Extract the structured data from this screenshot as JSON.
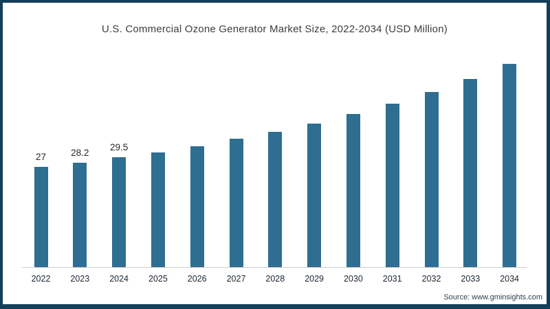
{
  "title": "U.S. Commercial Ozone Generator Market Size, 2022-2034 (USD Million)",
  "source_note": "Source: www.gminsights.com",
  "colors": {
    "bar": "#2E6E90",
    "frame": "#143F58",
    "title_text": "#3d3d3d",
    "axis_line": "#cccccc",
    "axis_label": "#1a2634",
    "value_label": "#262626",
    "source_text": "#2e3f50"
  },
  "chart_data": {
    "type": "bar",
    "title": "U.S. Commercial Ozone Generator Market Size, 2022-2034 (USD Million)",
    "categories": [
      "2022",
      "2023",
      "2024",
      "2025",
      "2026",
      "2027",
      "2028",
      "2029",
      "2030",
      "2031",
      "2032",
      "2033",
      "2034"
    ],
    "values": [
      27,
      28.2,
      29.5,
      30.8,
      32.6,
      34.5,
      36.4,
      38.6,
      41.3,
      44.0,
      47.1,
      50.6,
      54.7
    ],
    "data_labels": [
      "27",
      "28.2",
      "29.5",
      "",
      "",
      "",
      "",
      "",
      "",
      "",
      "",
      "",
      ""
    ],
    "xlabel": "",
    "ylabel": "",
    "ylim": [
      0,
      60
    ],
    "grid": false,
    "legend": false,
    "y_axis_shown": false,
    "x_axis_line": true
  }
}
